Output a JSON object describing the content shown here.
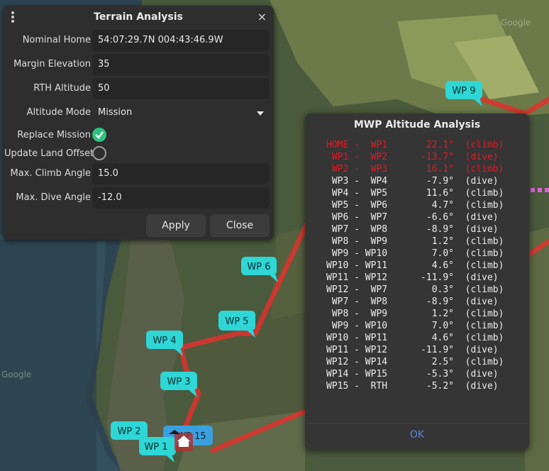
{
  "terrain_dialog": {
    "title": "Terrain Analysis",
    "close_glyph": "×",
    "fields": {
      "nominal_home_label": "Nominal Home",
      "nominal_home_value": "54:07:29.7N 004:43:46.9W",
      "margin_elevation_label": "Margin Elevation",
      "margin_elevation_value": "35",
      "rth_altitude_label": "RTH Altitude",
      "rth_altitude_value": "50",
      "altitude_mode_label": "Altitude Mode",
      "altitude_mode_value": "Mission",
      "replace_mission_label": "Replace Mission",
      "replace_mission_checked": true,
      "update_land_offset_label": "Update Land Offset",
      "update_land_offset_checked": false,
      "max_climb_label": "Max. Climb Angle",
      "max_climb_value": "15.0",
      "max_dive_label": "Max. Dive Angle",
      "max_dive_value": "-12.0"
    },
    "apply_label": "Apply",
    "close_label": "Close"
  },
  "altitude_dialog": {
    "title": "MWP Altitude Analysis",
    "ok_label": "OK",
    "rows": [
      {
        "text": "HOME -  WP1       22.1°  (climb)",
        "status": "bad"
      },
      {
        "text": " WP1 -  WP2      -13.7°  (dive)",
        "status": "bad"
      },
      {
        "text": " WP2 -  WP3       16.1°  (climb)",
        "status": "bad"
      },
      {
        "text": " WP3 -  WP4       -7.9°  (dive)",
        "status": "good"
      },
      {
        "text": " WP4 -  WP5       11.6°  (climb)",
        "status": "good"
      },
      {
        "text": " WP5 -  WP6        4.7°  (climb)",
        "status": "good"
      },
      {
        "text": " WP6 -  WP7       -6.6°  (dive)",
        "status": "good"
      },
      {
        "text": " WP7 -  WP8       -8.9°  (dive)",
        "status": "good"
      },
      {
        "text": " WP8 -  WP9        1.2°  (climb)",
        "status": "good"
      },
      {
        "text": " WP9 - WP10        7.0°  (climb)",
        "status": "good"
      },
      {
        "text": "WP10 - WP11        4.6°  (climb)",
        "status": "good"
      },
      {
        "text": "WP11 - WP12      -11.9°  (dive)",
        "status": "good"
      },
      {
        "text": "WP12 -  WP7        0.3°  (climb)",
        "status": "good"
      },
      {
        "text": " WP7 -  WP8       -8.9°  (dive)",
        "status": "good"
      },
      {
        "text": " WP8 -  WP9        1.2°  (climb)",
        "status": "good"
      },
      {
        "text": " WP9 - WP10        7.0°  (climb)",
        "status": "good"
      },
      {
        "text": "WP10 - WP11        4.6°  (climb)",
        "status": "good"
      },
      {
        "text": "WP11 - WP12      -11.9°  (dive)",
        "status": "good"
      },
      {
        "text": "WP12 - WP14        2.5°  (climb)",
        "status": "good"
      },
      {
        "text": "WP14 - WP15       -5.3°  (dive)",
        "status": "good"
      },
      {
        "text": "WP15 -  RTH       -5.2°  (dive)",
        "status": "good"
      }
    ]
  },
  "map": {
    "waypoints": {
      "wp1": "WP 1",
      "wp2": "WP 2",
      "wp3": "WP 3",
      "wp4": "WP 4",
      "wp5": "WP 5",
      "wp6": "WP 6",
      "wp9": "WP 9",
      "wp15": "WP 15"
    },
    "watermark": "Google",
    "colors": {
      "route": "#e0312e",
      "marker": "#2ed6d6",
      "marker_selected": "#3aa0e0",
      "bad_row": "#e01b24",
      "ok_button": "#5b86d6",
      "check_on": "#2ec27e"
    }
  }
}
